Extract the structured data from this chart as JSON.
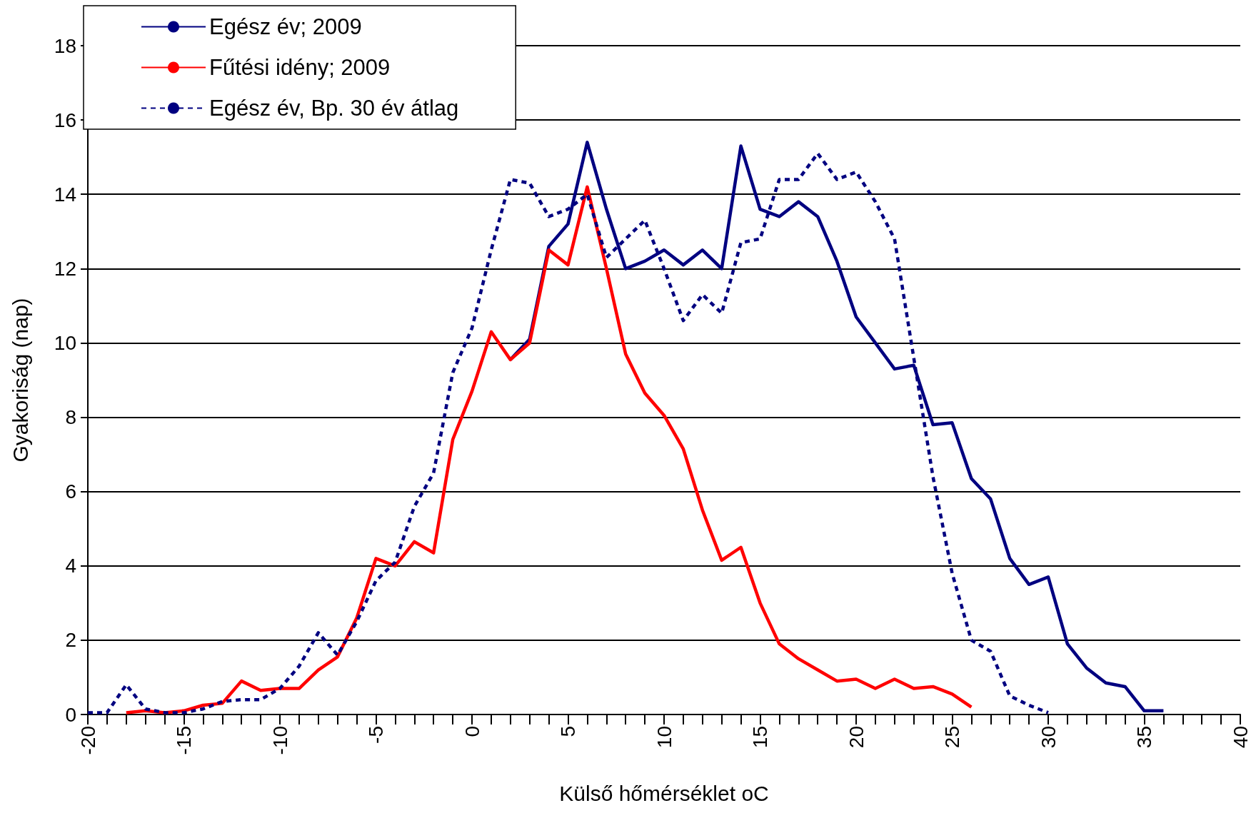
{
  "chart_data": {
    "type": "line",
    "xlabel": "Külső hőmérséklet oC",
    "ylabel": "Gyakoriság (nap)",
    "xlim": [
      -20,
      40
    ],
    "ylim": [
      0,
      18
    ],
    "yticks": [
      0,
      2,
      4,
      6,
      8,
      10,
      12,
      14,
      16,
      18
    ],
    "xticks": [
      -20,
      {
        "value": -19,
        "label": null
      },
      {
        "value": -18,
        "label": null
      },
      {
        "value": -17,
        "label": null
      },
      {
        "value": -16,
        "label": null
      },
      -15,
      {
        "value": -14,
        "label": null
      },
      {
        "value": -13,
        "label": null
      },
      {
        "value": -12,
        "label": null
      },
      {
        "value": -11,
        "label": null
      },
      -10,
      {
        "value": -9,
        "label": null
      },
      {
        "value": -8,
        "label": null
      },
      {
        "value": -7,
        "label": null
      },
      {
        "value": -6,
        "label": null
      },
      -5,
      {
        "value": -4,
        "label": null
      },
      {
        "value": -3,
        "label": null
      },
      {
        "value": -2,
        "label": null
      },
      {
        "value": -1,
        "label": null
      },
      0,
      {
        "value": 1,
        "label": null
      },
      {
        "value": 2,
        "label": null
      },
      {
        "value": 3,
        "label": null
      },
      {
        "value": 4,
        "label": null
      },
      5,
      {
        "value": 6,
        "label": null
      },
      {
        "value": 7,
        "label": null
      },
      {
        "value": 8,
        "label": null
      },
      {
        "value": 9,
        "label": null
      },
      10,
      {
        "value": 11,
        "label": null
      },
      {
        "value": 12,
        "label": null
      },
      {
        "value": 13,
        "label": null
      },
      {
        "value": 14,
        "label": null
      },
      15,
      {
        "value": 16,
        "label": null
      },
      {
        "value": 17,
        "label": null
      },
      {
        "value": 18,
        "label": null
      },
      {
        "value": 19,
        "label": null
      },
      20,
      {
        "value": 21,
        "label": null
      },
      {
        "value": 22,
        "label": null
      },
      {
        "value": 23,
        "label": null
      },
      {
        "value": 24,
        "label": null
      },
      25,
      {
        "value": 26,
        "label": null
      },
      {
        "value": 27,
        "label": null
      },
      {
        "value": 28,
        "label": null
      },
      {
        "value": 29,
        "label": null
      },
      30,
      {
        "value": 31,
        "label": null
      },
      {
        "value": 32,
        "label": null
      },
      {
        "value": 33,
        "label": null
      },
      {
        "value": 34,
        "label": null
      },
      35,
      {
        "value": 36,
        "label": null
      },
      {
        "value": 37,
        "label": null
      },
      {
        "value": 38,
        "label": null
      },
      {
        "value": 39,
        "label": null
      },
      40
    ],
    "grid": "y",
    "legend": "top left",
    "marker": "none",
    "series": [
      {
        "name": "Egész év; 2009",
        "color": "#000080",
        "line_style": "solid",
        "x": [
          2,
          3,
          4,
          5,
          6,
          7,
          8,
          9,
          10,
          11,
          12,
          13,
          14,
          15,
          16,
          17,
          18,
          19,
          20,
          21,
          22,
          23,
          24,
          25,
          26,
          27,
          28,
          29,
          30,
          31,
          32,
          33,
          34,
          35,
          36
        ],
        "values": [
          9.55,
          10.1,
          12.6,
          13.2,
          15.4,
          13.6,
          12.0,
          12.2,
          12.5,
          12.1,
          12.5,
          12.0,
          15.3,
          13.6,
          13.4,
          13.8,
          13.4,
          12.2,
          10.7,
          10.0,
          9.3,
          9.4,
          7.8,
          7.85,
          6.35,
          5.8,
          4.2,
          3.5,
          3.7,
          1.9,
          1.25,
          0.85,
          0.75,
          0.1,
          0.1
        ]
      },
      {
        "name": "Fűtési idény; 2009",
        "color": "#ff0000",
        "line_style": "solid",
        "x": [
          -18,
          -17,
          -16,
          -15,
          -14,
          -13,
          -12,
          -11,
          -10,
          -9,
          -8,
          -7,
          -6,
          -5,
          -4,
          -3,
          -2,
          -1,
          0,
          1,
          2,
          3,
          4,
          5,
          6,
          7,
          8,
          9,
          10,
          11,
          12,
          13,
          14,
          15,
          16,
          17,
          18,
          19,
          20,
          21,
          22,
          23,
          24,
          25,
          26
        ],
        "values": [
          0.05,
          0.1,
          0.05,
          0.1,
          0.25,
          0.3,
          0.9,
          0.65,
          0.7,
          0.7,
          1.2,
          1.55,
          2.6,
          4.2,
          4.0,
          4.65,
          4.35,
          7.4,
          8.7,
          10.3,
          9.55,
          10.0,
          12.5,
          12.1,
          14.2,
          12.0,
          9.7,
          8.65,
          8.05,
          7.15,
          5.5,
          4.15,
          4.5,
          3.0,
          1.9,
          1.5,
          1.2,
          0.9,
          0.95,
          0.7,
          0.95,
          0.7,
          0.75,
          0.55,
          0.2
        ]
      },
      {
        "name": "Egész év, Bp. 30 év átlag",
        "color": "#000080",
        "line_style": "dotted",
        "x": [
          -20,
          -19,
          -18,
          -17,
          -16,
          -15,
          -14,
          -13,
          -12,
          -11,
          -10,
          -9,
          -8,
          -7,
          -6,
          -5,
          -4,
          -3,
          -2,
          -1,
          0,
          1,
          2,
          3,
          4,
          5,
          6,
          7,
          8,
          9,
          10,
          11,
          12,
          13,
          14,
          15,
          16,
          17,
          18,
          19,
          20,
          21,
          22,
          23,
          24,
          25,
          26,
          27,
          28,
          29,
          30
        ],
        "values": [
          0.05,
          0.05,
          0.8,
          0.15,
          0.05,
          0.05,
          0.15,
          0.35,
          0.4,
          0.4,
          0.7,
          1.3,
          2.2,
          1.6,
          2.5,
          3.6,
          4.1,
          5.6,
          6.5,
          9.2,
          10.4,
          12.5,
          14.4,
          14.3,
          13.4,
          13.6,
          14.0,
          12.3,
          12.8,
          13.3,
          12.0,
          10.6,
          11.3,
          10.8,
          12.7,
          12.8,
          14.4,
          14.4,
          15.1,
          14.4,
          14.6,
          13.8,
          12.8,
          9.6,
          6.4,
          3.8,
          2.0,
          1.7,
          0.5,
          0.25,
          0.05
        ]
      }
    ]
  }
}
